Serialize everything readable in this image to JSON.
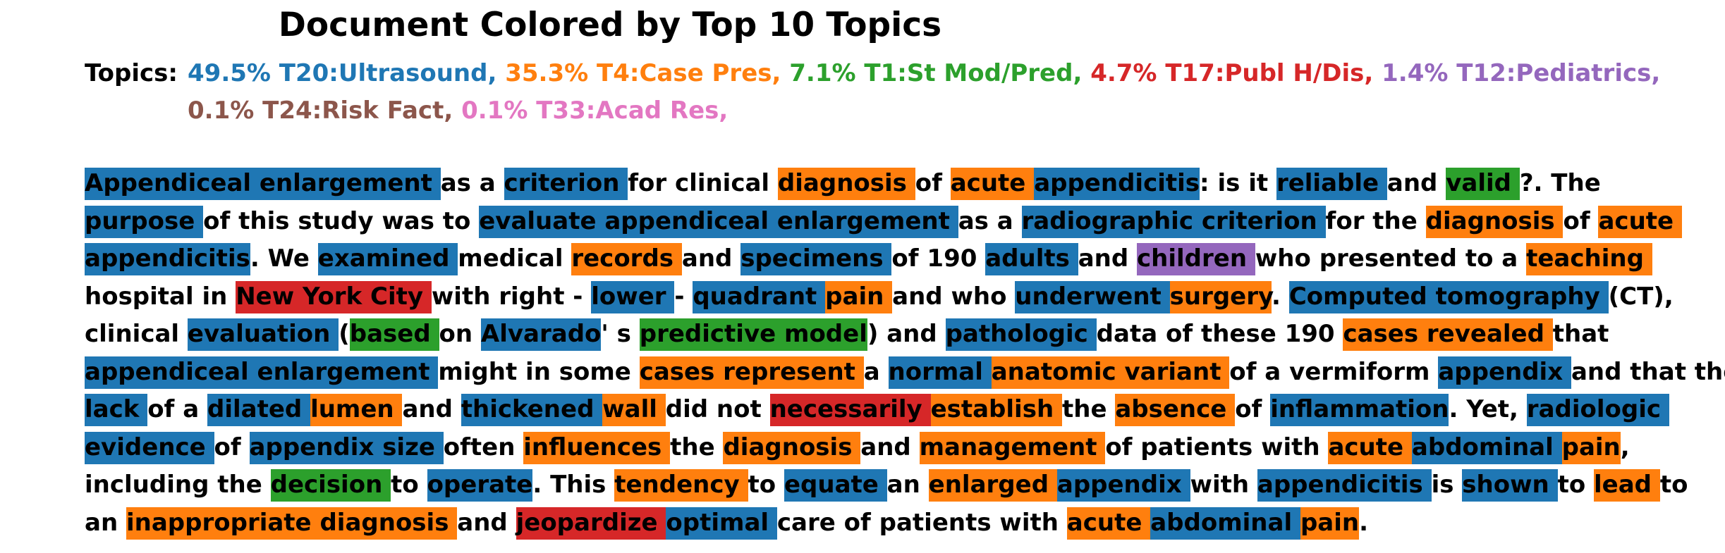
{
  "title": "Document Colored by Top 10 Topics",
  "topics_label": "Topics:",
  "topics": [
    {
      "text": "49.5% T20:Ultrasound,",
      "color": "#1f77b4"
    },
    {
      "text": "35.3% T4:Case Pres,",
      "color": "#ff7f0e"
    },
    {
      "text": "7.1% T1:St Mod/Pred,",
      "color": "#2ca02c"
    },
    {
      "text": "4.7% T17:Publ H/Dis,",
      "color": "#d62728"
    },
    {
      "text": "1.4% T12:Pediatrics,",
      "color": "#9467bd"
    },
    {
      "text": "0.1% T24:Risk Fact,",
      "color": "#8c564b"
    },
    {
      "text": "0.1% T33:Acad Res,",
      "color": "#e377c2"
    }
  ],
  "topic_colors": {
    "u": "#1f77b4",
    "c": "#ff7f0e",
    "s": "#2ca02c",
    "p": "#d62728",
    "k": "#9467bd"
  },
  "lines": [
    [
      [
        "Appendiceal ",
        "u"
      ],
      [
        "enlargement ",
        "u"
      ],
      [
        "as a ",
        ""
      ],
      [
        "criterion ",
        "u"
      ],
      [
        "for clinical ",
        ""
      ],
      [
        "diagnosis ",
        "c"
      ],
      [
        "of ",
        ""
      ],
      [
        "acute ",
        "c"
      ],
      [
        "appendicitis",
        "u"
      ],
      [
        ": is it ",
        ""
      ],
      [
        "reliable ",
        "u"
      ],
      [
        "and ",
        ""
      ],
      [
        "valid ",
        "s"
      ],
      [
        "?. The",
        ""
      ]
    ],
    [
      [
        "purpose ",
        "u"
      ],
      [
        "of this study was to ",
        ""
      ],
      [
        "evaluate ",
        "u"
      ],
      [
        "appendiceal ",
        "u"
      ],
      [
        "enlargement ",
        "u"
      ],
      [
        "as a ",
        ""
      ],
      [
        "radiographic ",
        "u"
      ],
      [
        "criterion ",
        "u"
      ],
      [
        "for the ",
        ""
      ],
      [
        "diagnosis ",
        "c"
      ],
      [
        "of ",
        ""
      ],
      [
        "acute ",
        "c"
      ]
    ],
    [
      [
        "appendicitis",
        "u"
      ],
      [
        ". We ",
        ""
      ],
      [
        "examined ",
        "u"
      ],
      [
        "medical ",
        ""
      ],
      [
        "records ",
        "c"
      ],
      [
        "and ",
        ""
      ],
      [
        "specimens ",
        "u"
      ],
      [
        "of 190 ",
        ""
      ],
      [
        "adults ",
        "u"
      ],
      [
        "and ",
        ""
      ],
      [
        "children ",
        "k"
      ],
      [
        "who presented to a ",
        ""
      ],
      [
        "teaching ",
        "c"
      ]
    ],
    [
      [
        "hospital in ",
        ""
      ],
      [
        "New York City ",
        "p"
      ],
      [
        "with right - ",
        ""
      ],
      [
        "lower ",
        "u"
      ],
      [
        "- ",
        ""
      ],
      [
        "quadrant ",
        "u"
      ],
      [
        "pain ",
        "c"
      ],
      [
        "and who ",
        ""
      ],
      [
        "underwent ",
        "u"
      ],
      [
        "surgery",
        "c"
      ],
      [
        ". ",
        ""
      ],
      [
        "Computed ",
        "u"
      ],
      [
        "tomography ",
        "u"
      ],
      [
        "(CT),",
        ""
      ]
    ],
    [
      [
        "clinical ",
        ""
      ],
      [
        "evaluation ",
        "u"
      ],
      [
        "(",
        ""
      ],
      [
        "based ",
        "s"
      ],
      [
        "on ",
        ""
      ],
      [
        "Alvarado",
        "u"
      ],
      [
        "' s ",
        ""
      ],
      [
        "predictive ",
        "s"
      ],
      [
        "model",
        "s"
      ],
      [
        ") and ",
        ""
      ],
      [
        "pathologic ",
        "u"
      ],
      [
        "data of these 190 ",
        ""
      ],
      [
        "cases ",
        "c"
      ],
      [
        "revealed ",
        "c"
      ],
      [
        "that",
        ""
      ]
    ],
    [
      [
        "appendiceal ",
        "u"
      ],
      [
        "enlargement ",
        "u"
      ],
      [
        "might in some ",
        ""
      ],
      [
        "cases ",
        "c"
      ],
      [
        "represent ",
        "c"
      ],
      [
        "a ",
        ""
      ],
      [
        "normal ",
        "u"
      ],
      [
        "anatomic ",
        "c"
      ],
      [
        "variant ",
        "c"
      ],
      [
        "of a vermiform ",
        ""
      ],
      [
        "appendix ",
        "u"
      ],
      [
        "and that the",
        ""
      ]
    ],
    [
      [
        "lack ",
        "u"
      ],
      [
        "of a ",
        ""
      ],
      [
        "dilated ",
        "u"
      ],
      [
        "lumen ",
        "c"
      ],
      [
        "and ",
        ""
      ],
      [
        "thickened ",
        "u"
      ],
      [
        "wall ",
        "c"
      ],
      [
        "did not ",
        ""
      ],
      [
        "necessarily ",
        "p"
      ],
      [
        "establish ",
        "c"
      ],
      [
        "the ",
        ""
      ],
      [
        "absence ",
        "c"
      ],
      [
        "of ",
        ""
      ],
      [
        "inflammation",
        "u"
      ],
      [
        ". Yet, ",
        ""
      ],
      [
        "radiologic ",
        "u"
      ]
    ],
    [
      [
        "evidence ",
        "u"
      ],
      [
        "of ",
        ""
      ],
      [
        "appendix ",
        "u"
      ],
      [
        "size ",
        "u"
      ],
      [
        "often ",
        ""
      ],
      [
        "influences ",
        "c"
      ],
      [
        "the ",
        ""
      ],
      [
        "diagnosis ",
        "c"
      ],
      [
        "and ",
        ""
      ],
      [
        "management ",
        "c"
      ],
      [
        "of patients with ",
        ""
      ],
      [
        "acute ",
        "c"
      ],
      [
        "abdominal ",
        "u"
      ],
      [
        "pain",
        "c"
      ],
      [
        ",",
        ""
      ]
    ],
    [
      [
        "including the ",
        ""
      ],
      [
        "decision ",
        "s"
      ],
      [
        "to ",
        ""
      ],
      [
        "operate",
        "u"
      ],
      [
        ". This ",
        ""
      ],
      [
        "tendency ",
        "c"
      ],
      [
        "to ",
        ""
      ],
      [
        "equate ",
        "u"
      ],
      [
        "an ",
        ""
      ],
      [
        "enlarged ",
        "c"
      ],
      [
        "appendix ",
        "u"
      ],
      [
        "with ",
        ""
      ],
      [
        "appendicitis ",
        "u"
      ],
      [
        "is ",
        ""
      ],
      [
        "shown ",
        "u"
      ],
      [
        "to ",
        ""
      ],
      [
        "lead ",
        "c"
      ],
      [
        "to",
        ""
      ]
    ],
    [
      [
        "an ",
        ""
      ],
      [
        "inappropriate ",
        "c"
      ],
      [
        "diagnosis ",
        "c"
      ],
      [
        "and ",
        ""
      ],
      [
        "jeopardize ",
        "p"
      ],
      [
        "optimal ",
        "u"
      ],
      [
        "care of patients with ",
        ""
      ],
      [
        "acute ",
        "c"
      ],
      [
        "abdominal ",
        "u"
      ],
      [
        "pain",
        "c"
      ],
      [
        ".",
        ""
      ]
    ]
  ]
}
